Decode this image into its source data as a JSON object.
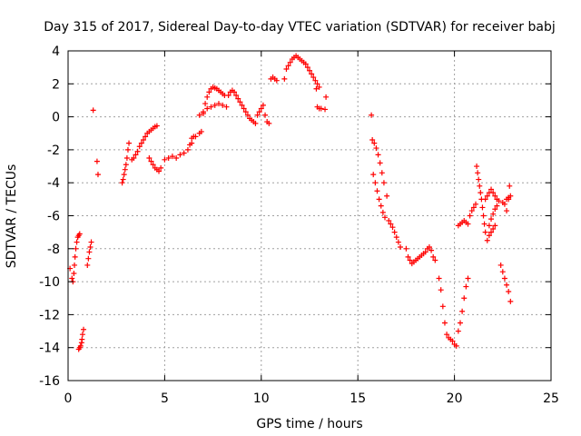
{
  "chart_data": {
    "type": "scatter",
    "title": "Day 315 of 2017, Sidereal Day-to-day VTEC variation (SDTVAR) for receiver babj",
    "xlabel": "GPS time / hours",
    "ylabel": "SDTVAR / TECUs",
    "xlim": [
      0,
      25
    ],
    "ylim": [
      -16,
      4
    ],
    "xticks": [
      "0",
      "5",
      "10",
      "15",
      "20",
      "25"
    ],
    "yticks": [
      "4",
      "2",
      "0",
      "-2",
      "-4",
      "-6",
      "-8",
      "-10",
      "-12",
      "-14",
      "-16"
    ],
    "grid": true,
    "marker": "+",
    "color": "#ff0000",
    "series": [
      {
        "name": "babj",
        "x": [
          0.1,
          0.2,
          0.25,
          0.3,
          0.33,
          0.36,
          0.4,
          0.45,
          0.5,
          0.55,
          0.6,
          0.55,
          0.6,
          0.65,
          0.7,
          0.72,
          0.75,
          0.8,
          1.0,
          1.05,
          1.1,
          1.15,
          1.2,
          1.3,
          1.5,
          1.55,
          2.8,
          2.85,
          2.9,
          2.95,
          3.0,
          3.05,
          3.1,
          3.15,
          3.3,
          3.4,
          3.5,
          3.6,
          3.7,
          3.8,
          3.9,
          4.0,
          4.1,
          4.2,
          4.3,
          4.4,
          4.5,
          4.6,
          4.2,
          4.3,
          4.4,
          4.5,
          4.6,
          4.7,
          4.8,
          5.0,
          5.2,
          5.4,
          5.6,
          5.8,
          6.0,
          6.2,
          6.4,
          6.5,
          6.3,
          6.4,
          6.6,
          6.8,
          6.9,
          7.0,
          7.1,
          7.2,
          7.3,
          7.4,
          7.5,
          7.6,
          7.7,
          7.8,
          7.9,
          8.0,
          8.1,
          6.8,
          7.0,
          7.2,
          7.4,
          7.6,
          7.8,
          8.0,
          8.2,
          8.3,
          8.4,
          8.5,
          8.6,
          8.7,
          8.8,
          8.9,
          9.0,
          9.1,
          9.2,
          9.3,
          9.4,
          9.5,
          9.6,
          9.7,
          9.8,
          9.9,
          10.0,
          10.1,
          10.2,
          10.3,
          10.4,
          10.5,
          10.6,
          10.7,
          10.8,
          11.2,
          11.3,
          11.4,
          11.5,
          11.6,
          11.7,
          11.8,
          11.9,
          12.0,
          12.1,
          12.2,
          12.3,
          12.4,
          12.5,
          12.6,
          12.7,
          12.8,
          12.9,
          13.0,
          12.85,
          12.9,
          13.0,
          13.1,
          13.3,
          13.35,
          15.7,
          15.75,
          15.8,
          15.85,
          15.9,
          15.95,
          16.0,
          16.05,
          16.1,
          16.15,
          16.2,
          16.25,
          16.3,
          16.35,
          16.4,
          16.5,
          16.6,
          16.7,
          16.8,
          16.9,
          17.0,
          17.1,
          17.2,
          17.5,
          17.6,
          17.7,
          17.8,
          17.9,
          18.0,
          18.1,
          18.2,
          18.3,
          18.4,
          18.5,
          18.6,
          18.7,
          18.8,
          18.9,
          19.0,
          19.2,
          19.3,
          19.4,
          19.5,
          19.6,
          19.7,
          19.8,
          19.9,
          20.0,
          20.1,
          20.2,
          20.3,
          20.4,
          20.5,
          20.6,
          20.7,
          20.2,
          20.3,
          20.4,
          20.5,
          20.6,
          20.7,
          20.8,
          20.9,
          21.0,
          21.1,
          21.15,
          21.2,
          21.25,
          21.3,
          21.35,
          21.4,
          21.45,
          21.5,
          21.55,
          21.6,
          21.7,
          21.8,
          21.9,
          22.0,
          22.1,
          21.6,
          21.7,
          21.8,
          21.9,
          22.0,
          22.1,
          22.2,
          22.3,
          22.5,
          22.6,
          22.7,
          22.8,
          22.9,
          21.8,
          21.9,
          22.0,
          22.1,
          22.2,
          22.4,
          22.5,
          22.6,
          22.7,
          22.8,
          22.9,
          22.7,
          22.8,
          22.85
        ],
        "y": [
          -9.2,
          -9.8,
          -10.0,
          -9.5,
          -9.0,
          -8.5,
          -8.0,
          -7.6,
          -7.3,
          -7.2,
          -7.1,
          -14.1,
          -14.0,
          -13.9,
          -13.7,
          -13.5,
          -13.2,
          -12.9,
          -9.0,
          -8.6,
          -8.2,
          -7.9,
          -7.6,
          0.4,
          -2.7,
          -3.5,
          -4.0,
          -3.8,
          -3.5,
          -3.2,
          -2.9,
          -2.5,
          -2.0,
          -1.6,
          -2.6,
          -2.5,
          -2.3,
          -2.1,
          -1.8,
          -1.6,
          -1.4,
          -1.2,
          -1.0,
          -0.9,
          -0.8,
          -0.7,
          -0.6,
          -0.55,
          -2.5,
          -2.7,
          -2.9,
          -3.1,
          -3.2,
          -3.3,
          -3.1,
          -2.6,
          -2.5,
          -2.4,
          -2.5,
          -2.3,
          -2.2,
          -2.0,
          -1.6,
          -1.2,
          -1.7,
          -1.3,
          -1.2,
          -1.0,
          -0.9,
          0.2,
          0.8,
          1.2,
          1.5,
          1.7,
          1.8,
          1.75,
          1.7,
          1.6,
          1.5,
          1.4,
          1.3,
          0.1,
          0.3,
          0.5,
          0.6,
          0.7,
          0.8,
          0.7,
          0.6,
          1.3,
          1.5,
          1.6,
          1.5,
          1.3,
          1.1,
          0.9,
          0.7,
          0.5,
          0.3,
          0.1,
          -0.1,
          -0.2,
          -0.3,
          -0.4,
          0.1,
          0.3,
          0.5,
          0.7,
          0.1,
          -0.3,
          -0.4,
          2.3,
          2.4,
          2.3,
          2.2,
          2.3,
          2.9,
          3.1,
          3.3,
          3.5,
          3.6,
          3.7,
          3.6,
          3.5,
          3.4,
          3.3,
          3.2,
          3.0,
          2.8,
          2.6,
          2.4,
          2.2,
          2.0,
          1.8,
          1.7,
          0.6,
          0.5,
          0.5,
          0.45,
          1.2,
          0.1,
          -1.4,
          -3.5,
          -1.6,
          -4.0,
          -1.9,
          -4.5,
          -2.3,
          -5.0,
          -2.8,
          -5.4,
          -3.4,
          -5.8,
          -4.0,
          -6.1,
          -4.8,
          -6.3,
          -6.5,
          -6.7,
          -7.0,
          -7.3,
          -7.6,
          -7.9,
          -8.0,
          -8.5,
          -8.7,
          -8.9,
          -8.8,
          -8.7,
          -8.6,
          -8.5,
          -8.4,
          -8.3,
          -8.2,
          -8.0,
          -7.9,
          -8.1,
          -8.5,
          -8.7,
          -9.8,
          -10.5,
          -11.5,
          -12.5,
          -13.2,
          -13.4,
          -13.5,
          -13.6,
          -13.8,
          -13.9,
          -13.0,
          -12.5,
          -11.8,
          -11.0,
          -10.3,
          -9.8,
          -6.6,
          -6.5,
          -6.4,
          -6.3,
          -6.4,
          -6.5,
          -6.0,
          -5.7,
          -5.5,
          -5.3,
          -3.0,
          -3.4,
          -3.8,
          -4.2,
          -4.6,
          -5.0,
          -5.5,
          -6.0,
          -6.5,
          -7.0,
          -7.5,
          -7.2,
          -7.0,
          -6.8,
          -6.6,
          -5.0,
          -4.8,
          -4.6,
          -4.4,
          -4.6,
          -4.8,
          -5.0,
          -5.1,
          -5.2,
          -5.3,
          -5.0,
          -4.9,
          -4.8,
          -6.6,
          -6.2,
          -5.9,
          -5.6,
          -5.4,
          -9.0,
          -9.4,
          -9.8,
          -10.2,
          -10.6,
          -11.2,
          -5.7,
          -5.0,
          -4.2
        ]
      }
    ]
  }
}
